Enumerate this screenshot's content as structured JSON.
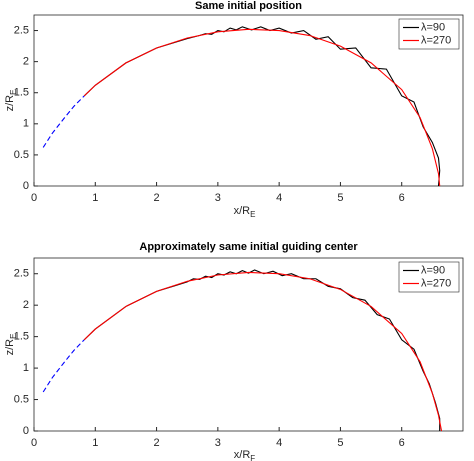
{
  "chart_data": [
    {
      "type": "line",
      "title": "Same initial position",
      "xlabel": "x/R",
      "xlabel_sub": "E",
      "ylabel": "z/R",
      "ylabel_sub": "E",
      "xlim": [
        0,
        7
      ],
      "xticks": [
        0,
        1,
        2,
        3,
        4,
        5,
        6
      ],
      "ylim": [
        0,
        2.75
      ],
      "yticks": [
        0,
        0.5,
        1,
        1.5,
        2,
        2.5
      ],
      "legend": "upper right",
      "series": [
        {
          "color": "#0000ff",
          "dash": true,
          "x": [
            0.15,
            0.3,
            0.5,
            0.65,
            0.82
          ],
          "values": [
            0.62,
            0.85,
            1.1,
            1.28,
            1.45
          ]
        },
        {
          "name": "λ=90",
          "color": "#000000",
          "x": [
            0.82,
            1,
            1.5,
            2,
            2.1,
            2.3,
            2.5,
            2.7,
            2.8,
            2.9,
            3.0,
            3.1,
            3.2,
            3.3,
            3.4,
            3.55,
            3.7,
            3.85,
            4.0,
            4.2,
            4.4,
            4.6,
            4.8,
            5.0,
            5.25,
            5.5,
            5.75,
            6.0,
            6.2,
            6.35,
            6.5,
            6.6,
            6.62,
            6.6
          ],
          "values": [
            1.45,
            1.62,
            1.98,
            2.22,
            2.25,
            2.31,
            2.37,
            2.42,
            2.45,
            2.44,
            2.5,
            2.48,
            2.54,
            2.51,
            2.56,
            2.51,
            2.56,
            2.5,
            2.54,
            2.46,
            2.5,
            2.36,
            2.4,
            2.2,
            2.22,
            1.9,
            1.88,
            1.45,
            1.35,
            0.95,
            0.7,
            0.45,
            0.25,
            0
          ]
        },
        {
          "name": "λ=270",
          "color": "#ff0000",
          "x": [
            0.82,
            1,
            1.5,
            2,
            2.5,
            3,
            3.5,
            4,
            4.5,
            5,
            5.5,
            6,
            6.3,
            6.5,
            6.6,
            6.62
          ],
          "values": [
            1.45,
            1.62,
            1.98,
            2.22,
            2.38,
            2.48,
            2.52,
            2.5,
            2.42,
            2.25,
            1.98,
            1.55,
            1.1,
            0.6,
            0.2,
            0
          ]
        }
      ]
    },
    {
      "type": "line",
      "title": "Approximately same initial guiding center",
      "xlabel": "x/R",
      "xlabel_sub": "F",
      "ylabel": "z/R",
      "ylabel_sub": "E",
      "xlim": [
        0,
        7
      ],
      "xticks": [
        0,
        1,
        2,
        3,
        4,
        5,
        6
      ],
      "ylim": [
        0,
        2.75
      ],
      "yticks": [
        0,
        0.5,
        1,
        1.5,
        2,
        2.5
      ],
      "legend": "upper right",
      "series": [
        {
          "color": "#0000ff",
          "dash": true,
          "x": [
            0.15,
            0.3,
            0.5,
            0.65,
            0.82
          ],
          "values": [
            0.62,
            0.85,
            1.1,
            1.28,
            1.45
          ]
        },
        {
          "name": "λ=90",
          "color": "#000000",
          "x": [
            0.82,
            1,
            1.5,
            2,
            2.1,
            2.3,
            2.5,
            2.6,
            2.7,
            2.8,
            2.9,
            3.0,
            3.1,
            3.2,
            3.3,
            3.4,
            3.5,
            3.6,
            3.75,
            3.9,
            4.05,
            4.2,
            4.4,
            4.6,
            4.8,
            5.0,
            5.2,
            5.4,
            5.6,
            5.8,
            6.0,
            6.2,
            6.35,
            6.45,
            6.55,
            6.62,
            6.62
          ],
          "values": [
            1.45,
            1.62,
            1.98,
            2.22,
            2.25,
            2.31,
            2.37,
            2.42,
            2.41,
            2.46,
            2.44,
            2.5,
            2.48,
            2.53,
            2.5,
            2.55,
            2.51,
            2.56,
            2.5,
            2.54,
            2.47,
            2.5,
            2.42,
            2.42,
            2.3,
            2.26,
            2.12,
            2.08,
            1.85,
            1.78,
            1.45,
            1.3,
            0.95,
            0.75,
            0.45,
            0.2,
            0
          ]
        },
        {
          "name": "λ=270",
          "color": "#ff0000",
          "x": [
            0.82,
            1,
            1.5,
            2,
            2.5,
            3,
            3.5,
            4,
            4.5,
            5,
            5.5,
            6,
            6.3,
            6.5,
            6.6,
            6.65
          ],
          "values": [
            1.45,
            1.62,
            1.98,
            2.22,
            2.38,
            2.48,
            2.52,
            2.5,
            2.42,
            2.25,
            1.98,
            1.55,
            1.1,
            0.6,
            0.25,
            0
          ]
        }
      ]
    }
  ]
}
